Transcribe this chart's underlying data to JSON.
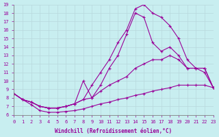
{
  "xlabel": "Windchill (Refroidissement éolien,°C)",
  "bg_color": "#c8eef0",
  "grid_color": "#b8d8dc",
  "line_color": "#990099",
  "xlim": [
    0,
    23
  ],
  "ylim": [
    6,
    19
  ],
  "xticks": [
    0,
    1,
    2,
    3,
    4,
    5,
    6,
    7,
    8,
    9,
    10,
    11,
    12,
    13,
    14,
    15,
    16,
    17,
    18,
    19,
    20,
    21,
    22,
    23
  ],
  "yticks": [
    6,
    7,
    8,
    9,
    10,
    11,
    12,
    13,
    14,
    15,
    16,
    17,
    18,
    19
  ],
  "line_top_x": [
    0,
    1,
    2,
    3,
    4,
    5,
    6,
    7,
    8,
    9,
    10,
    11,
    12,
    13,
    14,
    15,
    16,
    17,
    18,
    19,
    20,
    21,
    22,
    23
  ],
  "line_top_y": [
    8.5,
    7.8,
    7.5,
    7.0,
    6.8,
    6.8,
    7.0,
    7.3,
    7.8,
    9.5,
    11.0,
    12.5,
    14.5,
    16.0,
    18.5,
    19.0,
    18.0,
    17.5,
    16.5,
    15.0,
    12.5,
    11.5,
    11.5,
    9.2
  ],
  "line_2nd_x": [
    0,
    1,
    2,
    3,
    4,
    5,
    6,
    7,
    8,
    9,
    10,
    11,
    12,
    13,
    14,
    15,
    16,
    17,
    18,
    19,
    20,
    21,
    22,
    23
  ],
  "line_2nd_y": [
    8.5,
    7.8,
    7.5,
    7.0,
    6.8,
    6.8,
    7.0,
    7.3,
    10.0,
    8.0,
    9.5,
    11.5,
    13.0,
    15.5,
    18.0,
    17.5,
    14.5,
    13.5,
    14.0,
    13.0,
    11.5,
    11.5,
    11.0,
    9.2
  ],
  "line_3rd_x": [
    0,
    1,
    2,
    3,
    4,
    5,
    6,
    7,
    8,
    9,
    10,
    11,
    12,
    13,
    14,
    15,
    16,
    17,
    18,
    19,
    20,
    21,
    22,
    23
  ],
  "line_3rd_y": [
    8.5,
    7.8,
    7.5,
    7.0,
    6.8,
    6.8,
    7.0,
    7.3,
    7.8,
    8.0,
    8.8,
    9.5,
    10.0,
    10.5,
    11.5,
    12.0,
    12.5,
    12.5,
    13.0,
    12.5,
    11.5,
    11.5,
    11.5,
    9.2
  ],
  "line_bot_x": [
    0,
    1,
    2,
    3,
    4,
    5,
    6,
    7,
    8,
    9,
    10,
    11,
    12,
    13,
    14,
    15,
    16,
    17,
    18,
    19,
    20,
    21,
    22,
    23
  ],
  "line_bot_y": [
    8.5,
    7.8,
    7.2,
    6.5,
    6.3,
    6.3,
    6.4,
    6.5,
    6.7,
    7.0,
    7.3,
    7.5,
    7.8,
    8.0,
    8.3,
    8.5,
    8.8,
    9.0,
    9.2,
    9.5,
    9.5,
    9.5,
    9.5,
    9.2
  ]
}
